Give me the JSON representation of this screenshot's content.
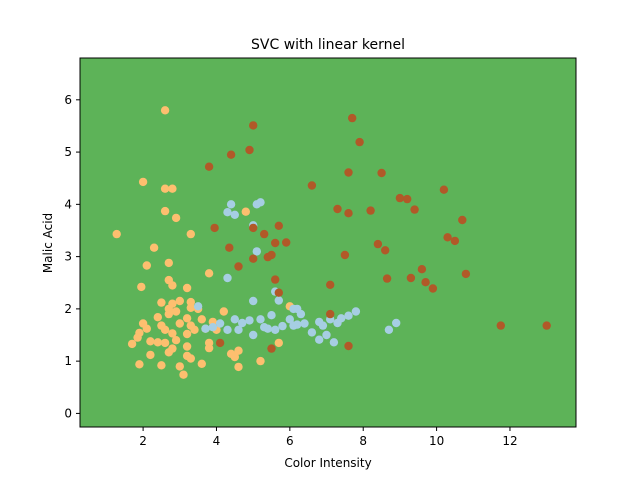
{
  "chart_data": {
    "type": "scatter",
    "title": "SVC with linear kernel",
    "xlabel": "Color Intensity",
    "ylabel": "Malic Acid",
    "xlim": [
      0.28,
      13.8
    ],
    "ylim": [
      -0.26,
      6.8
    ],
    "xticks": [
      2,
      4,
      6,
      8,
      10,
      12
    ],
    "yticks": [
      0,
      1,
      2,
      3,
      4,
      5,
      6
    ],
    "grid": false,
    "legend": "none",
    "background_region_color": "#5db358",
    "series": [
      {
        "color": "#fdbf6f",
        "points": [
          [
            2.6,
            5.8
          ],
          [
            2.0,
            4.43
          ],
          [
            2.6,
            4.3
          ],
          [
            2.8,
            4.3
          ],
          [
            2.6,
            3.87
          ],
          [
            2.9,
            3.74
          ],
          [
            1.28,
            3.43
          ],
          [
            3.3,
            3.43
          ],
          [
            2.3,
            3.17
          ],
          [
            2.7,
            2.88
          ],
          [
            2.1,
            2.83
          ],
          [
            3.8,
            2.68
          ],
          [
            2.7,
            2.55
          ],
          [
            2.8,
            2.45
          ],
          [
            1.95,
            2.42
          ],
          [
            3.2,
            2.4
          ],
          [
            3.0,
            2.15
          ],
          [
            2.5,
            2.12
          ],
          [
            2.8,
            2.1
          ],
          [
            3.3,
            2.13
          ],
          [
            2.7,
            2.0
          ],
          [
            3.3,
            2.02
          ],
          [
            2.9,
            1.95
          ],
          [
            3.5,
            2.0
          ],
          [
            4.2,
            1.95
          ],
          [
            2.7,
            1.9
          ],
          [
            3.2,
            1.82
          ],
          [
            2.4,
            1.84
          ],
          [
            3.6,
            1.8
          ],
          [
            3.9,
            1.75
          ],
          [
            2.0,
            1.72
          ],
          [
            3.0,
            1.72
          ],
          [
            2.5,
            1.68
          ],
          [
            2.1,
            1.62
          ],
          [
            2.6,
            1.6
          ],
          [
            3.3,
            1.68
          ],
          [
            3.4,
            1.6
          ],
          [
            3.7,
            1.62
          ],
          [
            1.9,
            1.54
          ],
          [
            2.8,
            1.53
          ],
          [
            3.2,
            1.52
          ],
          [
            4.0,
            1.6
          ],
          [
            1.85,
            1.45
          ],
          [
            2.2,
            1.38
          ],
          [
            2.6,
            1.35
          ],
          [
            2.9,
            1.4
          ],
          [
            3.8,
            1.35
          ],
          [
            1.7,
            1.33
          ],
          [
            2.4,
            1.36
          ],
          [
            2.8,
            1.24
          ],
          [
            3.2,
            1.28
          ],
          [
            3.8,
            1.25
          ],
          [
            2.2,
            1.12
          ],
          [
            2.7,
            1.17
          ],
          [
            3.2,
            1.1
          ],
          [
            3.3,
            1.05
          ],
          [
            4.4,
            1.14
          ],
          [
            4.6,
            1.2
          ],
          [
            4.5,
            1.08
          ],
          [
            1.9,
            0.94
          ],
          [
            2.5,
            0.92
          ],
          [
            3.0,
            0.9
          ],
          [
            3.6,
            0.95
          ],
          [
            4.6,
            0.89
          ],
          [
            5.2,
            1.0
          ],
          [
            3.1,
            0.74
          ],
          [
            4.8,
            3.86
          ],
          [
            5.7,
            1.35
          ],
          [
            6.0,
            2.05
          ]
        ]
      },
      {
        "color": "#a6cee3",
        "points": [
          [
            4.4,
            4.0
          ],
          [
            4.3,
            3.85
          ],
          [
            4.5,
            3.8
          ],
          [
            5.1,
            4.0
          ],
          [
            5.2,
            4.04
          ],
          [
            5.0,
            3.6
          ],
          [
            5.1,
            3.1
          ],
          [
            4.3,
            2.59
          ],
          [
            5.6,
            2.33
          ],
          [
            5.7,
            2.16
          ],
          [
            5.0,
            2.15
          ],
          [
            3.5,
            2.05
          ],
          [
            6.1,
            2.0
          ],
          [
            6.2,
            2.0
          ],
          [
            6.3,
            1.9
          ],
          [
            6.0,
            1.8
          ],
          [
            5.5,
            1.88
          ],
          [
            7.8,
            1.95
          ],
          [
            5.2,
            1.8
          ],
          [
            4.9,
            1.78
          ],
          [
            4.7,
            1.73
          ],
          [
            5.3,
            1.65
          ],
          [
            5.8,
            1.67
          ],
          [
            6.4,
            1.72
          ],
          [
            6.8,
            1.75
          ],
          [
            7.1,
            1.8
          ],
          [
            7.4,
            1.82
          ],
          [
            7.6,
            1.87
          ],
          [
            6.1,
            1.68
          ],
          [
            4.5,
            1.8
          ],
          [
            4.1,
            1.72
          ],
          [
            3.9,
            1.65
          ],
          [
            4.3,
            1.6
          ],
          [
            4.6,
            1.6
          ],
          [
            5.4,
            1.62
          ],
          [
            5.6,
            1.6
          ],
          [
            6.2,
            1.7
          ],
          [
            6.9,
            1.68
          ],
          [
            7.3,
            1.73
          ],
          [
            8.9,
            1.73
          ],
          [
            6.6,
            1.55
          ],
          [
            7.0,
            1.5
          ],
          [
            7.2,
            1.36
          ],
          [
            8.7,
            1.6
          ],
          [
            6.8,
            1.41
          ],
          [
            3.7,
            1.62
          ],
          [
            5.0,
            1.5
          ]
        ]
      },
      {
        "color": "#b15928",
        "points": [
          [
            5.0,
            5.51
          ],
          [
            7.7,
            5.65
          ],
          [
            7.9,
            5.19
          ],
          [
            4.4,
            4.95
          ],
          [
            4.9,
            5.04
          ],
          [
            3.8,
            4.72
          ],
          [
            7.6,
            4.61
          ],
          [
            8.5,
            4.6
          ],
          [
            6.6,
            4.36
          ],
          [
            10.2,
            4.28
          ],
          [
            9.0,
            4.12
          ],
          [
            9.2,
            4.1
          ],
          [
            9.4,
            3.9
          ],
          [
            7.3,
            3.91
          ],
          [
            8.2,
            3.88
          ],
          [
            7.6,
            3.83
          ],
          [
            10.7,
            3.7
          ],
          [
            5.7,
            3.59
          ],
          [
            3.95,
            3.55
          ],
          [
            5.3,
            3.43
          ],
          [
            5.0,
            3.55
          ],
          [
            10.3,
            3.37
          ],
          [
            10.5,
            3.3
          ],
          [
            5.6,
            3.26
          ],
          [
            5.9,
            3.27
          ],
          [
            8.4,
            3.24
          ],
          [
            8.6,
            3.12
          ],
          [
            4.35,
            3.17
          ],
          [
            5.5,
            3.03
          ],
          [
            7.5,
            3.03
          ],
          [
            5.4,
            2.99
          ],
          [
            5.0,
            2.96
          ],
          [
            9.6,
            2.76
          ],
          [
            4.6,
            2.81
          ],
          [
            10.8,
            2.67
          ],
          [
            9.3,
            2.59
          ],
          [
            8.65,
            2.58
          ],
          [
            5.6,
            2.56
          ],
          [
            9.7,
            2.51
          ],
          [
            7.1,
            2.46
          ],
          [
            9.9,
            2.39
          ],
          [
            5.7,
            2.31
          ],
          [
            7.1,
            1.9
          ],
          [
            4.1,
            1.35
          ],
          [
            5.5,
            1.24
          ],
          [
            7.6,
            1.29
          ],
          [
            11.75,
            1.68
          ],
          [
            13.0,
            1.68
          ]
        ]
      }
    ]
  }
}
